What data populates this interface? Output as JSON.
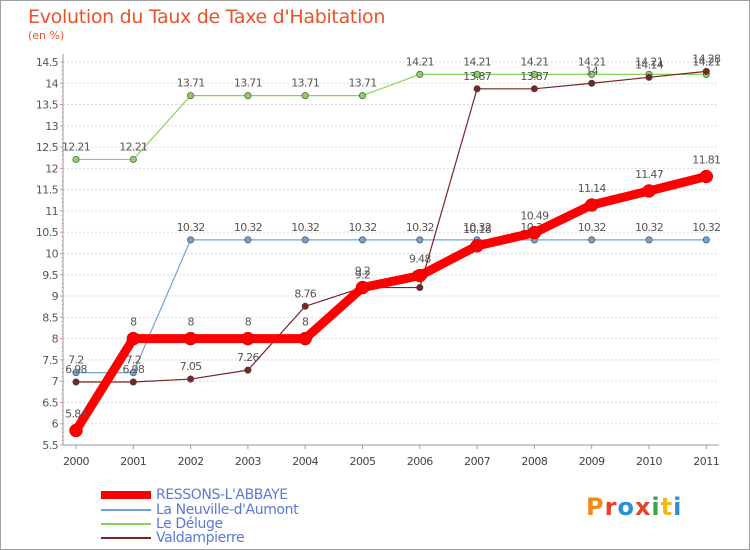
{
  "title": "Evolution du Taux de Taxe d'Habitation",
  "subtitle": "(en %)",
  "logo": {
    "text": "Proxiti",
    "colors": [
      "#f08a1c",
      "#e8412b",
      "#2f8fd3",
      "#e8412b",
      "#3aa64a",
      "#f0b81c",
      "#2f8fd3"
    ]
  },
  "chart_data": {
    "type": "line",
    "title": "Evolution du Taux de Taxe d'Habitation",
    "ylabel": "(en %)",
    "xlabel": "",
    "ylim": [
      5.5,
      14.5
    ],
    "yticks": [
      "5.5",
      "6",
      "6.5",
      "7",
      "7.5",
      "8",
      "8.5",
      "9",
      "9.5",
      "10",
      "10.5",
      "11",
      "11.5",
      "12",
      "12.5",
      "13",
      "13.5",
      "14",
      "14.5"
    ],
    "categories": [
      "2000",
      "2001",
      "2002",
      "2003",
      "2004",
      "2005",
      "2006",
      "2007",
      "2008",
      "2009",
      "2010",
      "2011"
    ],
    "series": [
      {
        "name": "RESSONS-L'ABBAYE",
        "color": "#ff0000",
        "values": [
          5.84,
          8,
          8,
          8,
          8,
          9.2,
          9.48,
          10.18,
          10.49,
          11.14,
          11.47,
          11.81
        ],
        "labels": [
          "5.84",
          "8",
          "8",
          "8",
          "8",
          "9.2",
          "9.48",
          "10.18",
          "10.49",
          "11.14",
          "11.47",
          "11.81"
        ]
      },
      {
        "name": "La Neuville-d'Aumont",
        "color": "#6fa3d6",
        "values": [
          7.2,
          7.2,
          10.32,
          10.32,
          10.32,
          10.32,
          10.32,
          10.32,
          10.32,
          10.32,
          10.32,
          10.32
        ],
        "labels": [
          "7.2",
          "7.2",
          "10.32",
          "10.32",
          "10.32",
          "10.32",
          "10.32",
          "10.32",
          "10.32",
          "10.32",
          "10.32",
          "10.32"
        ]
      },
      {
        "name": "Le Déluge",
        "color": "#88d45a",
        "values": [
          12.21,
          12.21,
          13.71,
          13.71,
          13.71,
          13.71,
          14.21,
          14.21,
          14.21,
          14.21,
          14.21,
          14.21
        ],
        "labels": [
          "12.21",
          "12.21",
          "13.71",
          "13.71",
          "13.71",
          "13.71",
          "14.21",
          "14.21",
          "14.21",
          "14.21",
          "14.21",
          "14.21"
        ]
      },
      {
        "name": "Valdampierre",
        "color": "#7a2424",
        "values": [
          6.98,
          6.98,
          7.05,
          7.26,
          8.76,
          9.2,
          9.2,
          13.87,
          13.87,
          14,
          14.14,
          14.28
        ],
        "labels": [
          "6.98",
          "6.98",
          "7.05",
          "7.26",
          "8.76",
          "9.2",
          "9.2",
          "13.87",
          "13.87",
          "14",
          "14.14",
          "14.28"
        ]
      }
    ]
  }
}
